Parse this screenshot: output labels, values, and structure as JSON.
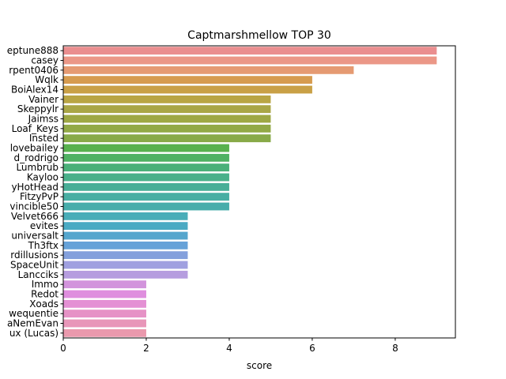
{
  "chart_data": {
    "type": "bar",
    "orientation": "horizontal",
    "title": "Captmarshmellow TOP 30",
    "xlabel": "score",
    "ylabel": "",
    "xlim": [
      0,
      9.45
    ],
    "xticks": [
      0,
      2,
      4,
      6,
      8
    ],
    "grid": false,
    "legend": "none",
    "categories": [
      "eptune888",
      "casey",
      "rpent0406",
      "Wqlk",
      "BoiAlex14",
      "Vainer",
      "Skeppylr",
      "Jaimss",
      "Loaf_Keys",
      "Insted",
      "lovebailey",
      "d_rodrigo",
      "Lumbrub",
      "Kayloo",
      "yHotHead",
      "FitzyPvP",
      "vincible50",
      "Velvet666",
      "evites",
      "universalt",
      "Th3ftx",
      "rdillusions",
      "SpaceUnit",
      "Lancciks",
      "Immo",
      "Redot",
      "Xoads",
      "wequentie",
      "aNemEvan",
      "ux (Lucas)"
    ],
    "values": [
      9,
      9,
      7,
      6,
      6,
      5,
      5,
      5,
      5,
      5,
      4,
      4,
      4,
      4,
      4,
      4,
      4,
      3,
      3,
      3,
      3,
      3,
      3,
      3,
      2,
      2,
      2,
      2,
      2,
      2
    ],
    "colors": [
      "#ea8e8f",
      "#eb9787",
      "#e59a72",
      "#d69b4e",
      "#c9a046",
      "#b9a544",
      "#a9a646",
      "#9ea844",
      "#92a946",
      "#88aa48",
      "#58b14e",
      "#4fb163",
      "#4ab079",
      "#49b08a",
      "#48ae97",
      "#48aea3",
      "#47adab",
      "#49adb8",
      "#4aaac3",
      "#55a6cd",
      "#66a2d8",
      "#84a0dc",
      "#a0a0e0",
      "#b69ddf",
      "#d293dc",
      "#df8ede",
      "#e490d4",
      "#e692c6",
      "#e896b9",
      "#ea99ad"
    ]
  }
}
